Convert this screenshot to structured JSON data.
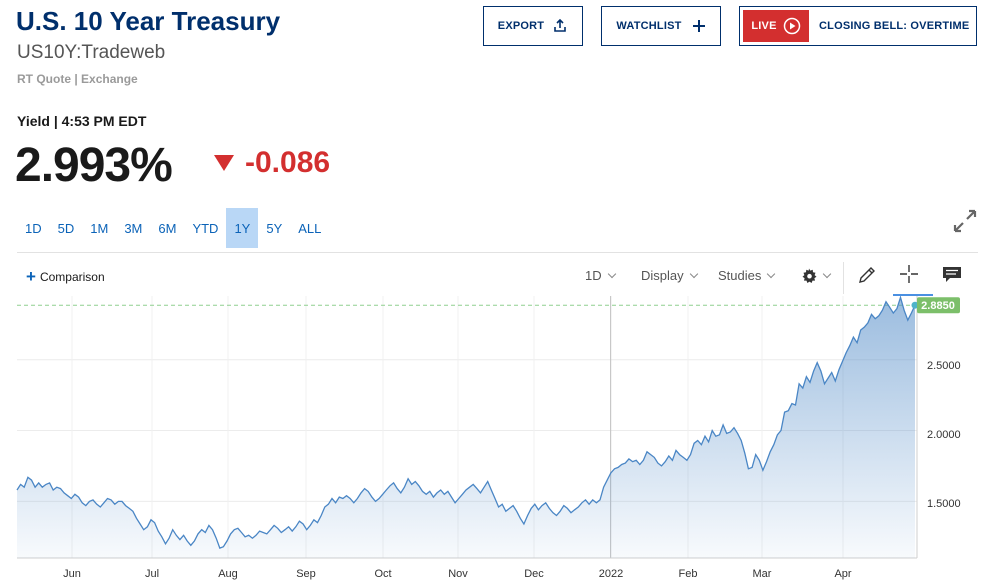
{
  "header": {
    "title": "U.S. 10 Year Treasury",
    "symbol": "US10Y:Tradeweb",
    "quote_source": "RT Quote | Exchange",
    "export_label": "EXPORT",
    "watchlist_label": "WATCHLIST",
    "live_label": "LIVE",
    "live_show": "CLOSING BELL: OVERTIME"
  },
  "quote": {
    "yield_label": "Yield | 4:53 PM EDT",
    "last": "2.993%",
    "change": "-0.086",
    "change_color": "#d32f2f"
  },
  "ranges": {
    "items": [
      "1D",
      "5D",
      "1M",
      "3M",
      "6M",
      "YTD",
      "1Y",
      "5Y",
      "ALL"
    ],
    "active": "1Y"
  },
  "toolbar": {
    "comparison": "Comparison",
    "interval": "1D",
    "display": "Display",
    "studies": "Studies"
  },
  "chart_data": {
    "type": "area",
    "x_ticks": [
      "Jun",
      "Jul",
      "Aug",
      "Sep",
      "Oct",
      "Nov",
      "Dec",
      "2022",
      "Feb",
      "Mar",
      "Apr"
    ],
    "y_ticks": [
      "2.5000",
      "2.0000",
      "1.5000"
    ],
    "last_price_label": "2.8850",
    "last_value": 2.885,
    "ylim": [
      1.1,
      2.95
    ],
    "grid": true,
    "line_color": "#4a86c5",
    "values": [
      1.58,
      1.62,
      1.6,
      1.67,
      1.65,
      1.6,
      1.63,
      1.6,
      1.62,
      1.63,
      1.58,
      1.6,
      1.59,
      1.56,
      1.54,
      1.52,
      1.55,
      1.53,
      1.49,
      1.47,
      1.5,
      1.51,
      1.48,
      1.46,
      1.49,
      1.52,
      1.51,
      1.48,
      1.5,
      1.5,
      1.47,
      1.45,
      1.43,
      1.38,
      1.34,
      1.3,
      1.32,
      1.37,
      1.35,
      1.29,
      1.25,
      1.2,
      1.24,
      1.3,
      1.26,
      1.23,
      1.26,
      1.22,
      1.19,
      1.22,
      1.27,
      1.3,
      1.28,
      1.33,
      1.3,
      1.24,
      1.17,
      1.18,
      1.22,
      1.27,
      1.3,
      1.31,
      1.28,
      1.25,
      1.26,
      1.24,
      1.26,
      1.29,
      1.28,
      1.27,
      1.3,
      1.33,
      1.31,
      1.28,
      1.3,
      1.32,
      1.29,
      1.32,
      1.36,
      1.34,
      1.3,
      1.33,
      1.37,
      1.35,
      1.4,
      1.46,
      1.48,
      1.52,
      1.49,
      1.53,
      1.52,
      1.54,
      1.52,
      1.49,
      1.52,
      1.56,
      1.59,
      1.57,
      1.53,
      1.5,
      1.52,
      1.55,
      1.58,
      1.61,
      1.63,
      1.59,
      1.56,
      1.6,
      1.66,
      1.62,
      1.64,
      1.61,
      1.57,
      1.55,
      1.57,
      1.53,
      1.56,
      1.58,
      1.55,
      1.57,
      1.53,
      1.49,
      1.52,
      1.55,
      1.58,
      1.6,
      1.62,
      1.59,
      1.56,
      1.6,
      1.64,
      1.58,
      1.52,
      1.46,
      1.48,
      1.43,
      1.45,
      1.47,
      1.43,
      1.38,
      1.34,
      1.4,
      1.45,
      1.48,
      1.44,
      1.47,
      1.49,
      1.45,
      1.42,
      1.4,
      1.43,
      1.47,
      1.45,
      1.42,
      1.44,
      1.46,
      1.49,
      1.51,
      1.48,
      1.51,
      1.49,
      1.51,
      1.6,
      1.65,
      1.7,
      1.73,
      1.74,
      1.76,
      1.77,
      1.8,
      1.78,
      1.79,
      1.76,
      1.79,
      1.85,
      1.83,
      1.81,
      1.77,
      1.75,
      1.78,
      1.82,
      1.79,
      1.86,
      1.83,
      1.81,
      1.79,
      1.83,
      1.91,
      1.93,
      1.9,
      1.96,
      1.92,
      2.0,
      1.96,
      1.97,
      2.04,
      1.98,
      1.99,
      2.02,
      1.98,
      1.93,
      1.84,
      1.73,
      1.74,
      1.83,
      1.79,
      1.72,
      1.78,
      1.85,
      1.9,
      1.97,
      2.0,
      2.13,
      2.14,
      2.19,
      2.18,
      2.33,
      2.3,
      2.38,
      2.34,
      2.42,
      2.48,
      2.42,
      2.33,
      2.37,
      2.41,
      2.35,
      2.43,
      2.49,
      2.55,
      2.6,
      2.66,
      2.62,
      2.71,
      2.73,
      2.76,
      2.82,
      2.79,
      2.81,
      2.85,
      2.91,
      2.87,
      2.83,
      2.86,
      2.94,
      2.85,
      2.78,
      2.83,
      2.885
    ]
  }
}
